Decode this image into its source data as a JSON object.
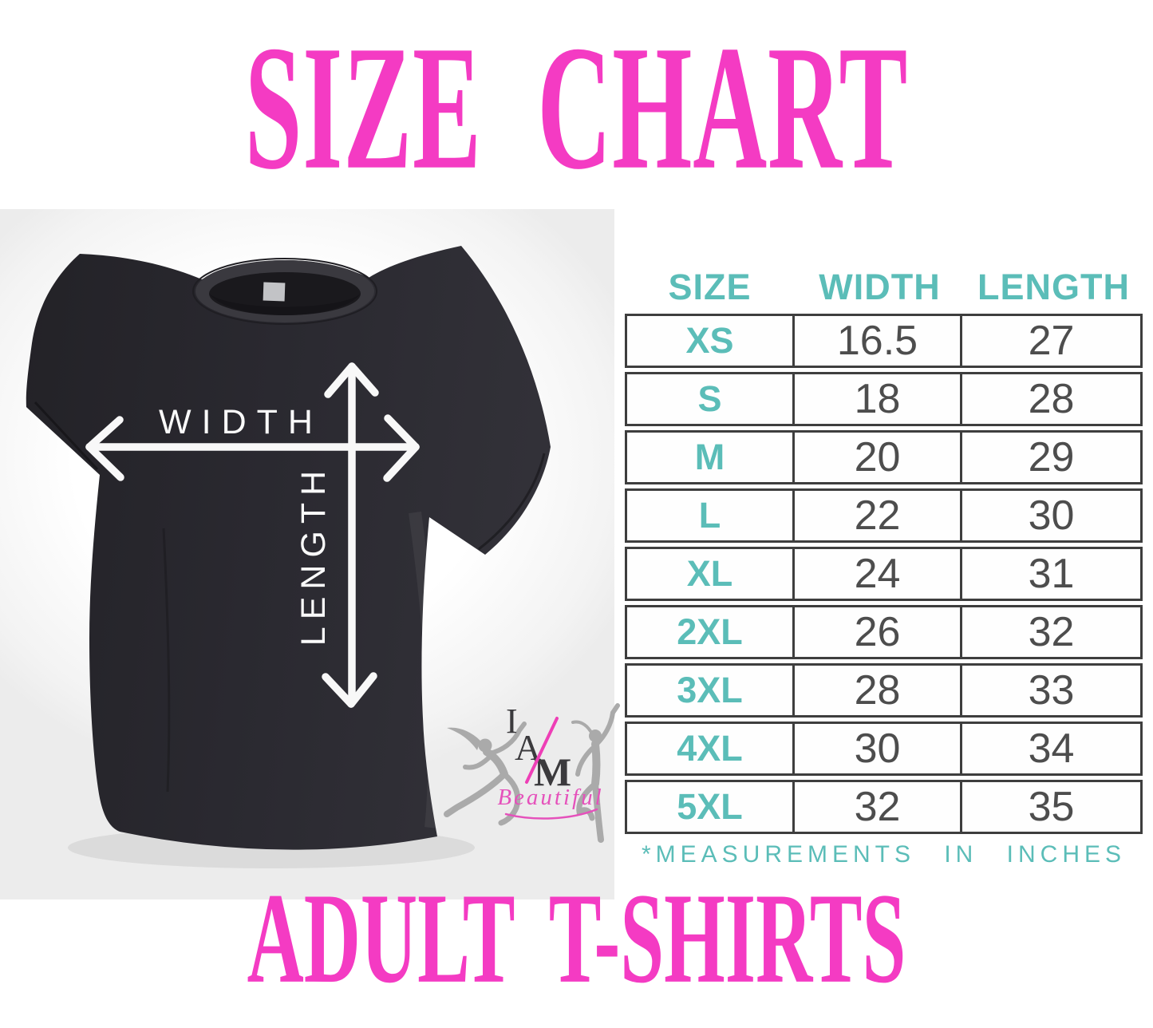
{
  "colors": {
    "accent_pink": "#f43bc3",
    "accent_teal": "#5bbdb8",
    "table_border": "#3e3e3e",
    "number_gray": "#4d4d4d",
    "shirt_dark": "#2a2930",
    "logo_gray": "#a7a7a7"
  },
  "chart_data": {
    "type": "table",
    "title": "SIZE CHART",
    "subtitle": "ADULT T-SHIRTS",
    "columns": [
      "SIZE",
      "WIDTH",
      "LENGTH"
    ],
    "rows": [
      {
        "size": "XS",
        "width": "16.5",
        "length": "27"
      },
      {
        "size": "S",
        "width": "18",
        "length": "28"
      },
      {
        "size": "M",
        "width": "20",
        "length": "29"
      },
      {
        "size": "L",
        "width": "22",
        "length": "30"
      },
      {
        "size": "XL",
        "width": "24",
        "length": "31"
      },
      {
        "size": "2XL",
        "width": "26",
        "length": "32"
      },
      {
        "size": "3XL",
        "width": "28",
        "length": "33"
      },
      {
        "size": "4XL",
        "width": "30",
        "length": "34"
      },
      {
        "size": "5XL",
        "width": "32",
        "length": "35"
      }
    ],
    "footnote": "*MEASUREMENTS IN INCHES",
    "units": "inches"
  },
  "shirt_diagram": {
    "width_label": "WIDTH",
    "length_label": "LENGTH"
  },
  "logo": {
    "monogram": [
      "I",
      "A",
      "M"
    ],
    "script": "Beautiful"
  }
}
